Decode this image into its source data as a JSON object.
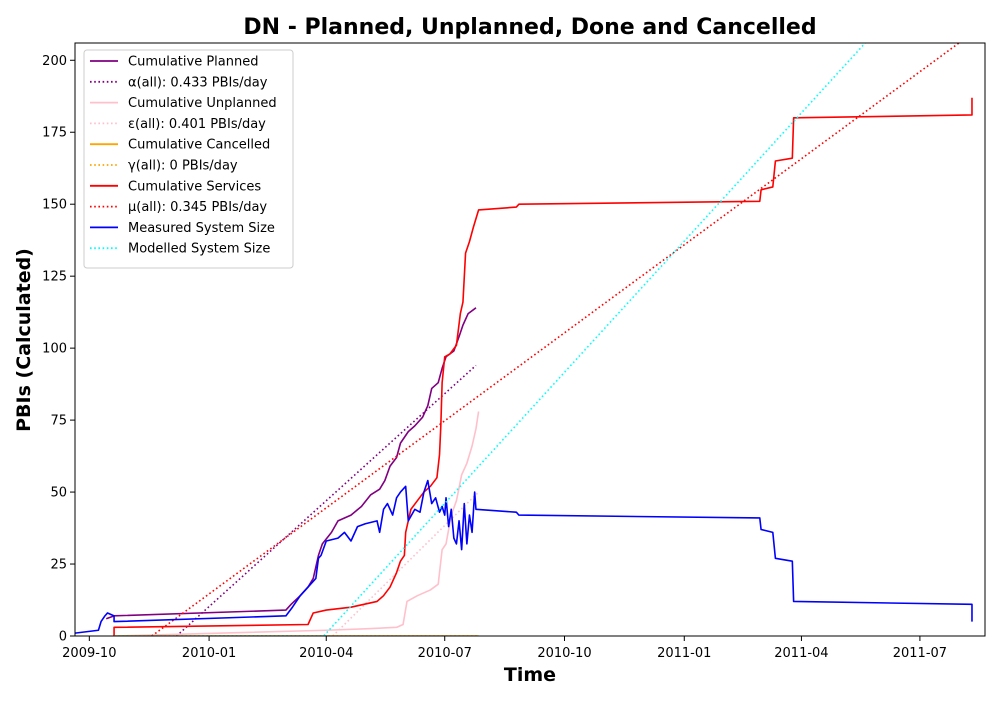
{
  "chart_data": {
    "type": "line",
    "title": "DN - Planned, Unplanned, Done  and Cancelled",
    "xlabel": "Time",
    "ylabel": "PBIs (Calculated)",
    "xlim": [
      "2009-09-20",
      "2011-08-20"
    ],
    "ylim": [
      0,
      206
    ],
    "xticks": [
      {
        "value": "2009-10-01",
        "label": "2009-10"
      },
      {
        "value": "2010-01-01",
        "label": "2010-01"
      },
      {
        "value": "2010-04-01",
        "label": "2010-04"
      },
      {
        "value": "2010-07-01",
        "label": "2010-07"
      },
      {
        "value": "2010-10-01",
        "label": "2010-10"
      },
      {
        "value": "2011-01-01",
        "label": "2011-01"
      },
      {
        "value": "2011-04-01",
        "label": "2011-04"
      },
      {
        "value": "2011-07-01",
        "label": "2011-07"
      }
    ],
    "yticks": [
      0,
      25,
      50,
      75,
      100,
      125,
      150,
      175,
      200
    ],
    "grid": false,
    "legend_position": "top-left",
    "series": [
      {
        "name": "Cumulative Planned",
        "color": "#800080",
        "style": "solid",
        "points": [
          [
            "2009-10-14",
            6
          ],
          [
            "2009-10-20",
            7
          ],
          [
            "2010-03-01",
            9
          ],
          [
            "2010-03-05",
            11
          ],
          [
            "2010-03-12",
            14
          ],
          [
            "2010-03-18",
            17
          ],
          [
            "2010-03-22",
            20
          ],
          [
            "2010-03-26",
            28
          ],
          [
            "2010-03-29",
            32
          ],
          [
            "2010-04-05",
            36
          ],
          [
            "2010-04-10",
            40
          ],
          [
            "2010-04-20",
            42
          ],
          [
            "2010-04-28",
            45
          ],
          [
            "2010-05-05",
            49
          ],
          [
            "2010-05-12",
            51
          ],
          [
            "2010-05-16",
            54
          ],
          [
            "2010-05-20",
            59
          ],
          [
            "2010-05-25",
            62
          ],
          [
            "2010-05-28",
            67
          ],
          [
            "2010-06-03",
            71
          ],
          [
            "2010-06-08",
            73
          ],
          [
            "2010-06-14",
            76
          ],
          [
            "2010-06-18",
            80
          ],
          [
            "2010-06-21",
            86
          ],
          [
            "2010-06-26",
            88
          ],
          [
            "2010-06-29",
            93
          ],
          [
            "2010-07-02",
            97
          ],
          [
            "2010-07-05",
            98
          ],
          [
            "2010-07-08",
            99
          ],
          [
            "2010-07-12",
            104
          ],
          [
            "2010-07-15",
            108
          ],
          [
            "2010-07-19",
            112
          ],
          [
            "2010-07-25",
            114
          ]
        ]
      },
      {
        "name": "α(all): 0.433 PBIs/day",
        "color": "#800080",
        "style": "dotted",
        "points": [
          [
            "2009-12-07",
            0
          ],
          [
            "2010-07-25",
            94
          ]
        ]
      },
      {
        "name": "Cumulative Unplanned",
        "color": "#ffc0cb",
        "style": "solid",
        "points": [
          [
            "2009-10-20",
            0
          ],
          [
            "2010-04-01",
            2
          ],
          [
            "2010-05-01",
            2.5
          ],
          [
            "2010-05-25",
            3
          ],
          [
            "2010-05-30",
            4
          ],
          [
            "2010-06-02",
            12
          ],
          [
            "2010-06-10",
            14
          ],
          [
            "2010-06-20",
            16
          ],
          [
            "2010-06-26",
            18
          ],
          [
            "2010-06-29",
            30
          ],
          [
            "2010-07-02",
            32
          ],
          [
            "2010-07-06",
            42
          ],
          [
            "2010-07-10",
            47
          ],
          [
            "2010-07-14",
            56
          ],
          [
            "2010-07-18",
            60
          ],
          [
            "2010-07-22",
            66
          ],
          [
            "2010-07-25",
            72
          ],
          [
            "2010-07-27",
            78
          ]
        ]
      },
      {
        "name": "ε(all): 0.401 PBIs/day",
        "color": "#ffc0cb",
        "style": "dotted",
        "points": [
          [
            "2010-04-06",
            0
          ],
          [
            "2010-07-27",
            50
          ]
        ]
      },
      {
        "name": "Cumulative Cancelled",
        "color": "#ffa500",
        "style": "solid",
        "points": [
          [
            "2009-10-20",
            0
          ],
          [
            "2010-07-27",
            0
          ]
        ]
      },
      {
        "name": "γ(all): 0 PBIs/day",
        "color": "#ffa500",
        "style": "dotted",
        "points": [
          [
            "2009-10-20",
            0
          ],
          [
            "2010-07-27",
            0
          ]
        ]
      },
      {
        "name": "Cumulative Services",
        "color": "#ff0000",
        "style": "solid",
        "points": [
          [
            "2009-10-20",
            0
          ],
          [
            "2009-10-20",
            3
          ],
          [
            "2010-03-18",
            4
          ],
          [
            "2010-03-22",
            8
          ],
          [
            "2010-04-01",
            9
          ],
          [
            "2010-04-20",
            10
          ],
          [
            "2010-05-10",
            12
          ],
          [
            "2010-05-15",
            14
          ],
          [
            "2010-05-20",
            17
          ],
          [
            "2010-05-25",
            22
          ],
          [
            "2010-05-28",
            26
          ],
          [
            "2010-05-31",
            28
          ],
          [
            "2010-06-01",
            36
          ],
          [
            "2010-06-05",
            44
          ],
          [
            "2010-06-10",
            47
          ],
          [
            "2010-06-15",
            50
          ],
          [
            "2010-06-20",
            52
          ],
          [
            "2010-06-25",
            55
          ],
          [
            "2010-06-27",
            63
          ],
          [
            "2010-06-28",
            73
          ],
          [
            "2010-06-29",
            88
          ],
          [
            "2010-07-01",
            97
          ],
          [
            "2010-07-05",
            98
          ],
          [
            "2010-07-10",
            101
          ],
          [
            "2010-07-13",
            112
          ],
          [
            "2010-07-15",
            116
          ],
          [
            "2010-07-17",
            133
          ],
          [
            "2010-07-20",
            137
          ],
          [
            "2010-07-23",
            142
          ],
          [
            "2010-07-27",
            148
          ],
          [
            "2010-08-25",
            149
          ],
          [
            "2010-08-27",
            150
          ],
          [
            "2011-02-28",
            151
          ],
          [
            "2011-03-01",
            155
          ],
          [
            "2011-03-10",
            156
          ],
          [
            "2011-03-12",
            165
          ],
          [
            "2011-03-25",
            166
          ],
          [
            "2011-03-26",
            180
          ],
          [
            "2011-08-10",
            181
          ],
          [
            "2011-08-10",
            187
          ]
        ]
      },
      {
        "name": "μ(all): 0.345 PBIs/day",
        "color": "#ff0000",
        "style": "dotted",
        "points": [
          [
            "2009-11-18",
            0
          ],
          [
            "2011-07-31",
            206
          ]
        ]
      },
      {
        "name": "Measured System Size",
        "color": "#0000ff",
        "style": "solid",
        "points": [
          [
            "2009-09-20",
            1
          ],
          [
            "2009-10-08",
            2
          ],
          [
            "2009-10-10",
            5
          ],
          [
            "2009-10-13",
            7
          ],
          [
            "2009-10-15",
            8
          ],
          [
            "2009-10-20",
            7
          ],
          [
            "2009-10-20",
            5
          ],
          [
            "2010-03-01",
            7
          ],
          [
            "2010-03-06",
            10
          ],
          [
            "2010-03-12",
            14
          ],
          [
            "2010-03-18",
            17
          ],
          [
            "2010-03-24",
            20
          ],
          [
            "2010-03-26",
            27
          ],
          [
            "2010-03-28",
            28
          ],
          [
            "2010-04-01",
            33
          ],
          [
            "2010-04-10",
            34
          ],
          [
            "2010-04-15",
            36
          ],
          [
            "2010-04-20",
            33
          ],
          [
            "2010-04-25",
            38
          ],
          [
            "2010-05-01",
            39
          ],
          [
            "2010-05-10",
            40
          ],
          [
            "2010-05-12",
            36
          ],
          [
            "2010-05-15",
            44
          ],
          [
            "2010-05-18",
            46
          ],
          [
            "2010-05-22",
            42
          ],
          [
            "2010-05-25",
            48
          ],
          [
            "2010-05-28",
            50
          ],
          [
            "2010-06-01",
            52
          ],
          [
            "2010-06-03",
            40
          ],
          [
            "2010-06-08",
            44
          ],
          [
            "2010-06-12",
            43
          ],
          [
            "2010-06-15",
            50
          ],
          [
            "2010-06-18",
            54
          ],
          [
            "2010-06-21",
            46
          ],
          [
            "2010-06-24",
            48
          ],
          [
            "2010-06-27",
            43
          ],
          [
            "2010-06-29",
            45
          ],
          [
            "2010-07-01",
            42
          ],
          [
            "2010-07-02",
            48
          ],
          [
            "2010-07-04",
            38
          ],
          [
            "2010-07-06",
            44
          ],
          [
            "2010-07-08",
            34
          ],
          [
            "2010-07-10",
            32
          ],
          [
            "2010-07-12",
            40
          ],
          [
            "2010-07-14",
            30
          ],
          [
            "2010-07-16",
            46
          ],
          [
            "2010-07-18",
            32
          ],
          [
            "2010-07-20",
            42
          ],
          [
            "2010-07-22",
            36
          ],
          [
            "2010-07-24",
            50
          ],
          [
            "2010-07-25",
            44
          ],
          [
            "2010-08-25",
            43
          ],
          [
            "2010-08-27",
            42
          ],
          [
            "2011-02-28",
            41
          ],
          [
            "2011-03-01",
            37
          ],
          [
            "2011-03-10",
            36
          ],
          [
            "2011-03-12",
            27
          ],
          [
            "2011-03-25",
            26
          ],
          [
            "2011-03-26",
            12
          ],
          [
            "2011-08-10",
            11
          ],
          [
            "2011-08-10",
            5
          ]
        ]
      },
      {
        "name": "Modelled System Size",
        "color": "#00ffff",
        "style": "dotted",
        "points": [
          [
            "2009-10-20",
            0
          ],
          [
            "2010-03-30",
            0
          ],
          [
            "2011-05-20",
            206
          ]
        ]
      }
    ]
  }
}
